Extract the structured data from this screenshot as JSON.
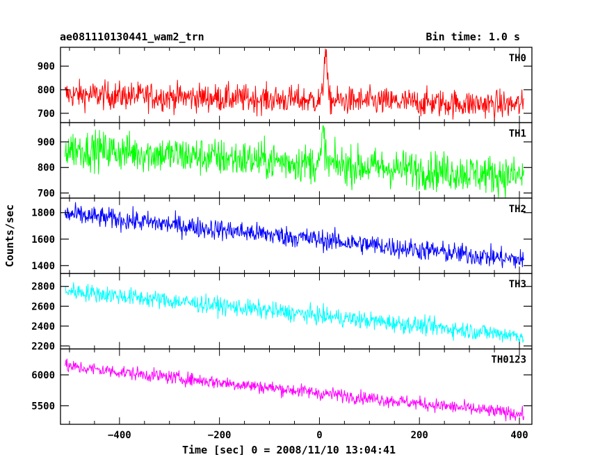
{
  "header": {
    "title": "ae081110130441_wam2_trn",
    "bin_time": "Bin time: 1.0 s"
  },
  "chart_data": {
    "type": "line",
    "title": "ae081110130441_wam2_trn",
    "xlabel": "Time [sec] 0 = 2008/11/10 13:04:41",
    "ylabel": "Counts/sec",
    "xlim": [
      -518,
      425
    ],
    "x_ticks": [
      -400,
      -200,
      0,
      200,
      400
    ],
    "x_tick_labels": [
      "−400",
      "−200",
      "0",
      "200",
      "400"
    ],
    "x_range_data": [
      -509,
      409
    ],
    "panels": [
      {
        "name": "TH0",
        "color": "#ff0000",
        "ylim": [
          660,
          980
        ],
        "yticks": [
          700,
          800,
          900
        ],
        "start": 780,
        "end": 735,
        "noise": 30,
        "peak": {
          "x": 12,
          "value": 975
        }
      },
      {
        "name": "TH1",
        "color": "#00ff00",
        "ylim": [
          680,
          975
        ],
        "yticks": [
          700,
          800,
          900
        ],
        "start": 875,
        "end": 765,
        "noise": 38,
        "peak": {
          "x": 8,
          "value": 935
        }
      },
      {
        "name": "TH2",
        "color": "#0000ff",
        "ylim": [
          1340,
          1910
        ],
        "yticks": [
          1400,
          1600,
          1800
        ],
        "start": 1790,
        "end": 1440,
        "noise": 40,
        "peak": null
      },
      {
        "name": "TH3",
        "color": "#00ffff",
        "ylim": [
          2170,
          2930
        ],
        "yticks": [
          2200,
          2400,
          2600,
          2800
        ],
        "start": 2760,
        "end": 2300,
        "noise": 45,
        "peak": null
      },
      {
        "name": "TH0123",
        "color": "#ff00ff",
        "ylim": [
          5200,
          6420
        ],
        "yticks": [
          5500,
          6000
        ],
        "start": 6140,
        "end": 5360,
        "noise": 55,
        "peak": {
          "x": 8,
          "value": 5680
        }
      }
    ]
  }
}
